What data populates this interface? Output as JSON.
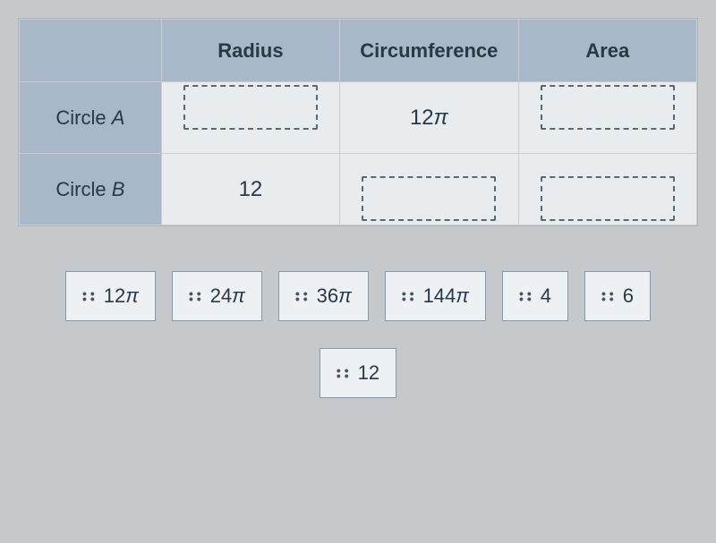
{
  "table": {
    "headers": [
      "",
      "Radius",
      "Circumference",
      "Area"
    ],
    "rows": [
      {
        "label_prefix": "Circle ",
        "label_suffix": "A",
        "radius": "",
        "radius_is_drop": true,
        "circumference": "12π",
        "circumference_is_drop": false,
        "area": "",
        "area_is_drop": true
      },
      {
        "label_prefix": "Circle ",
        "label_suffix": "B",
        "radius": "12",
        "radius_is_drop": false,
        "circumference": "",
        "circumference_is_drop": true,
        "area": "",
        "area_is_drop": true
      }
    ]
  },
  "tiles": {
    "row1": [
      "12π",
      "24π",
      "36π",
      "144π",
      "4",
      "6"
    ],
    "row2": [
      "12"
    ]
  },
  "styling": {
    "header_bg": "#a8b8c8",
    "cell_bg": "#e8ecef",
    "body_bg": "#c5c9cc",
    "tile_bg": "#eef1f4",
    "border_color": "#8a98a5",
    "text_color": "#2a3844",
    "font_size_header": 22,
    "font_size_cell": 24,
    "font_size_tile": 22
  }
}
